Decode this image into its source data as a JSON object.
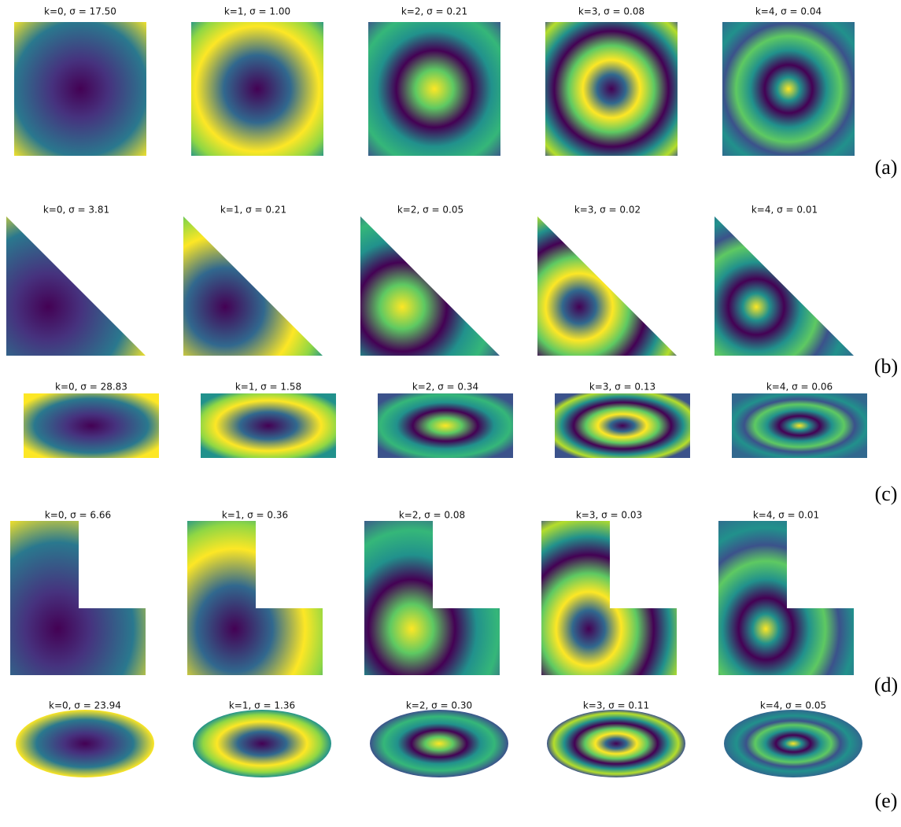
{
  "rows": [
    {
      "label": "(a)",
      "panels": [
        "k=0, σ = 17.50",
        "k=1, σ = 1.00",
        "k=2, σ = 0.21",
        "k=3, σ = 0.08",
        "k=4, σ = 0.04"
      ]
    },
    {
      "label": "(b)",
      "panels": [
        "k=0, σ = 3.81",
        "k=1, σ = 0.21",
        "k=2, σ = 0.05",
        "k=3, σ = 0.02",
        "k=4, σ = 0.01"
      ]
    },
    {
      "label": "(c)",
      "panels": [
        "k=0, σ = 28.83",
        "k=1, σ = 1.58",
        "k=2, σ = 0.34",
        "k=3, σ = 0.13",
        "k=4, σ = 0.06"
      ]
    },
    {
      "label": "(d)",
      "panels": [
        "k=0, σ = 6.66",
        "k=1, σ = 0.36",
        "k=2, σ = 0.08",
        "k=3, σ = 0.03",
        "k=4, σ = 0.01"
      ]
    },
    {
      "label": "(e)",
      "panels": [
        "k=0, σ = 23.94",
        "k=1, σ = 1.36",
        "k=2, σ = 0.30",
        "k=3, σ = 0.11",
        "k=4, σ = 0.05"
      ]
    }
  ]
}
